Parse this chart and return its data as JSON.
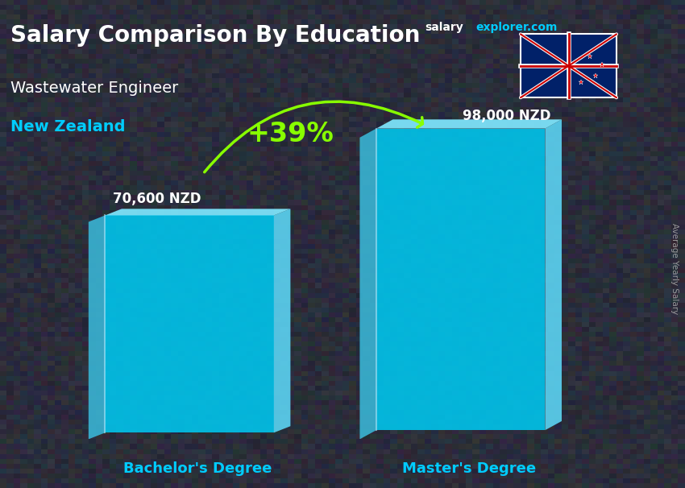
{
  "title_main": "Salary Comparison By Education",
  "subtitle1": "Wastewater Engineer",
  "subtitle2": "New Zealand",
  "website_gray": "salary",
  "website_cyan": "explorer.com",
  "ylabel_rotated": "Average Yearly Salary",
  "categories": [
    "Bachelor's Degree",
    "Master's Degree"
  ],
  "values": [
    70600,
    98000
  ],
  "value_labels": [
    "70,600 NZD",
    "98,000 NZD"
  ],
  "bar_color_left": "#3ab8d8",
  "bar_color_front": "#00c8f0",
  "bar_color_right": "#5dd8f8",
  "bar_color_top": "#80e8ff",
  "pct_label": "+39%",
  "pct_color": "#88ff00",
  "arrow_color": "#88ff00",
  "bg_color": "#3a3a3a",
  "title_color": "#ffffff",
  "subtitle1_color": "#ffffff",
  "subtitle2_color": "#00ccff",
  "label_color": "#ffffff",
  "category_label_color": "#00ccff",
  "website_color": "#ffffff",
  "website_cyan_color": "#00ccff",
  "figsize": [
    8.5,
    6.06
  ],
  "dpi": 100,
  "ylim": [
    0,
    130000
  ]
}
